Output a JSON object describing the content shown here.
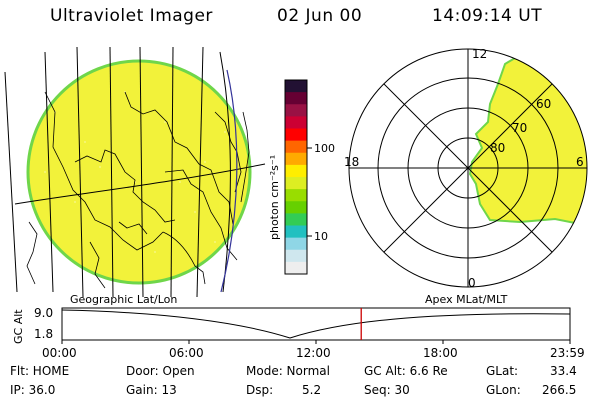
{
  "header": {
    "instrument": "Ultraviolet Imager",
    "date": "02 Jun 00",
    "time": "14:09:14 UT"
  },
  "colorbar": {
    "unit_label": "photon cm⁻²s⁻¹",
    "tick_100": "100",
    "tick_10": "10",
    "colors": [
      "#eeeeee",
      "#cfe7ee",
      "#8fd6e6",
      "#22c0c0",
      "#33cc55",
      "#66d000",
      "#99dd00",
      "#ddee22",
      "#ffee00",
      "#ffaa00",
      "#ff6600",
      "#ff0000",
      "#cc0033",
      "#991144",
      "#660033",
      "#221133"
    ]
  },
  "polar": {
    "label_top": "12",
    "label_left": "18",
    "label_right": "6",
    "label_bottom": "0",
    "ring_60": "60",
    "ring_70": "70",
    "ring_80": "80"
  },
  "coord_labels": {
    "left": "Geographic Lat/Lon",
    "right": "Apex MLat/MLT"
  },
  "altitude_plot": {
    "ylabel": "GC Alt",
    "ytick_top": "9.0",
    "ytick_bottom": "1.8",
    "xticks": [
      "00:00",
      "06:00",
      "12:00",
      "18:00",
      "23:59"
    ],
    "marker_fraction": 0.589
  },
  "info": {
    "flt_label": "Flt: HOME",
    "ip_label": "IP: 36.0",
    "door_label": "Door: Open",
    "gain_label": "Gain: 13",
    "mode_label": "Mode: Normal",
    "dsp_label": "Dsp:",
    "dsp_value": "5.2",
    "gcalt_label": "GC Alt: 6.6 Re",
    "seq_label": "Seq: 30",
    "glat_label": "GLat:",
    "glat_value": "33.4",
    "glon_label": "GLon:",
    "glon_value": "266.5"
  },
  "accent_colors": {
    "aurora": "#f2f23a",
    "aurora_edge": "#6fd64a",
    "marker": "#cc0000"
  }
}
